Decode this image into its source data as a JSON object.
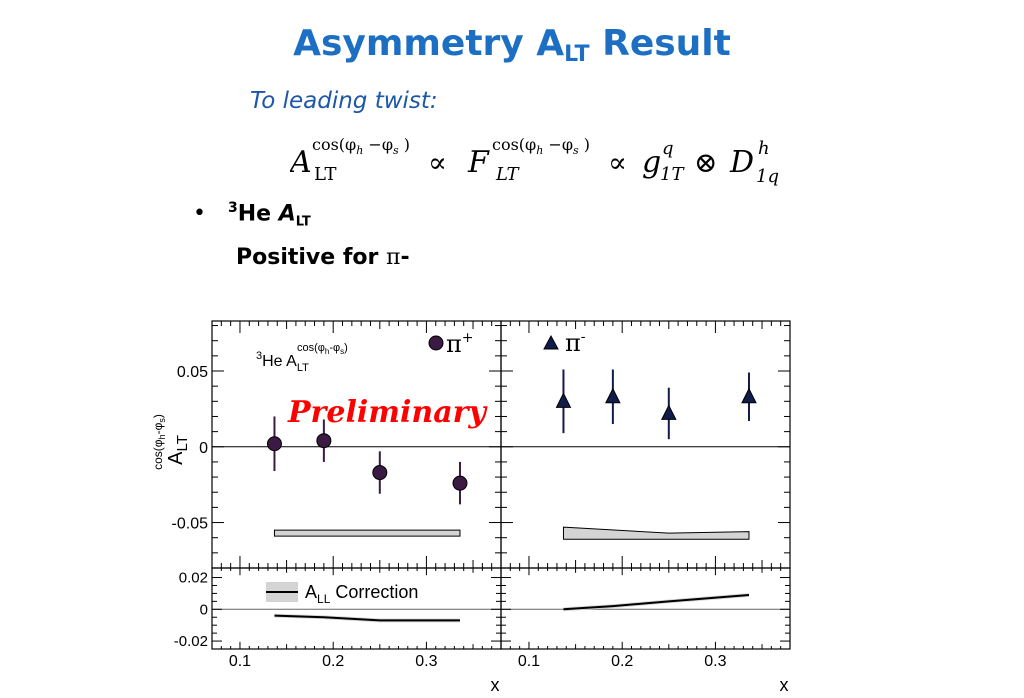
{
  "slide": {
    "title_main": "Asymmetry A",
    "title_sub": "LT",
    "title_rest": " Result",
    "subtitle": "To leading twist:",
    "bullet_dot": "•",
    "bullet_sup": "3",
    "bullet_he": "He ",
    "bullet_a": "A",
    "bullet_lt": "LT",
    "positive_text": "Positive for ",
    "positive_pi": "π",
    "positive_sign": "-"
  },
  "formula": {
    "A": "A",
    "A_sup": "cos(φ",
    "A_sup_h": "h",
    "A_sup_mid": " −φ",
    "A_sup_s": "s",
    "A_sup_end": " )",
    "A_sub": "LT",
    "propto1": "∝",
    "F": "F",
    "F_sup": "cos(φ",
    "F_sup_h": "h",
    "F_sup_mid": " −φ",
    "F_sup_s": "s",
    "F_sup_end": " )",
    "F_sub": "LT",
    "propto2": "∝",
    "g": "g",
    "g_sup": "q",
    "g_sub": "1T",
    "otimes": "⊗",
    "D": "D",
    "D_sup": "h",
    "D_sub": "1q"
  },
  "chart_data": {
    "type": "scatter",
    "x": [
      0.137,
      0.19,
      0.25,
      0.336
    ],
    "xlim": [
      0.07,
      0.38
    ],
    "xticks": [
      "0.1",
      "0.2",
      "0.3"
    ],
    "xlabel": "x",
    "ylabel_main": "A",
    "ylabel_sub": "LT",
    "ylabel_sup": "cos(φ",
    "ylabel_sup_h": "h",
    "ylabel_sup_mid": "-φ",
    "ylabel_sup_s": "s",
    "ylabel_sup_end": ")",
    "ylim_main": [
      -0.08,
      0.083
    ],
    "yticks_main": [
      "0.05",
      "0",
      "-0.05"
    ],
    "ylim_corr": [
      -0.025,
      0.026
    ],
    "yticks_corr": [
      "0.02",
      "0",
      "-0.02"
    ],
    "in_plot_label": {
      "pre": "3",
      "main": "He A",
      "sub": "LT",
      "sup": "cos(φ",
      "sup_h": "h",
      "sup_mid": "-φ",
      "sup_s": "s",
      "sup_end": ")"
    },
    "preliminary": "Preliminary",
    "series": [
      {
        "name": "π+",
        "legend_main": "π",
        "legend_sign": "+",
        "marker": "circle",
        "color": "#3b1a44",
        "y": [
          0.002,
          0.004,
          -0.017,
          -0.024
        ],
        "yerr": [
          0.018,
          0.014,
          0.014,
          0.014
        ],
        "sys_band": [
          [
            0.137,
            -0.059,
            -0.055
          ],
          [
            0.336,
            -0.059,
            -0.055
          ]
        ],
        "correction": [
          [
            0.137,
            -0.004
          ],
          [
            0.19,
            -0.005
          ],
          [
            0.25,
            -0.007
          ],
          [
            0.336,
            -0.007
          ]
        ]
      },
      {
        "name": "π-",
        "legend_main": "π",
        "legend_sign": "-",
        "marker": "triangle",
        "color": "#101c4a",
        "y": [
          0.03,
          0.033,
          0.022,
          0.033
        ],
        "yerr": [
          0.021,
          0.018,
          0.017,
          0.016
        ],
        "sys_band": [
          [
            0.137,
            -0.061,
            -0.053
          ],
          [
            0.25,
            -0.061,
            -0.057
          ],
          [
            0.336,
            -0.061,
            -0.056
          ]
        ],
        "correction": [
          [
            0.137,
            0.0
          ],
          [
            0.19,
            0.002
          ],
          [
            0.25,
            0.005
          ],
          [
            0.336,
            0.009
          ]
        ]
      }
    ],
    "correction_legend": {
      "main": "A",
      "sub": "LL",
      "rest": " Correction"
    },
    "colors": {
      "band": "#d4d4d4",
      "preliminary": "#ff0000"
    }
  }
}
